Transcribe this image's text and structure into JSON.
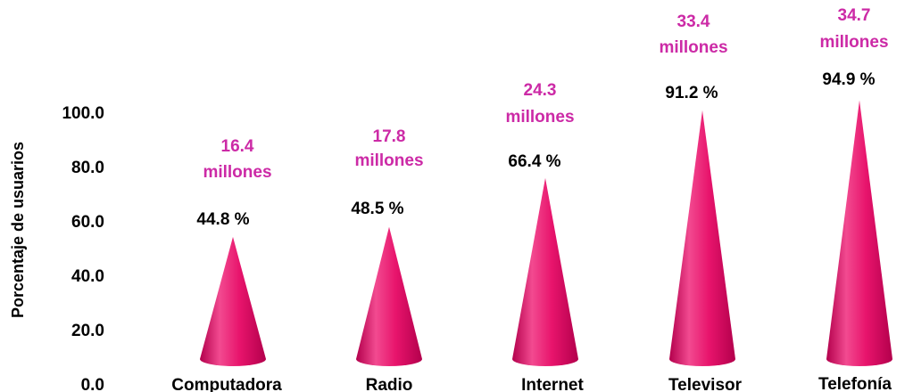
{
  "chart_data": {
    "type": "bar",
    "shape": "cone",
    "ylabel": "Porcentaje de usuarios",
    "ylim": [
      0,
      100
    ],
    "yticks": [
      "0.0",
      "20.0",
      "40.0",
      "60.0",
      "80.0",
      "100.0"
    ],
    "categories": [
      "Computadora",
      "Radio",
      "Internet",
      "Televisor",
      "Telefonía"
    ],
    "series": [
      {
        "values": [
          44.8,
          48.5,
          66.4,
          91.2,
          94.9
        ]
      }
    ],
    "value_labels": [
      "44.8 %",
      "48.5 %",
      "66.4 %",
      "91.2 %",
      "94.9 %"
    ],
    "user_labels": [
      {
        "line1": "16.4",
        "line2": "millones"
      },
      {
        "line1": "17.8",
        "line2": "millones"
      },
      {
        "line1": "24.3",
        "line2": "millones"
      },
      {
        "line1": "33.4",
        "line2": "millones"
      },
      {
        "line1": "34.7",
        "line2": "millones"
      }
    ],
    "grid": false,
    "legend": "none",
    "colors": {
      "cone_light": "#f24a90",
      "cone_mid": "#e8146c",
      "cone_dark": "#b3004c",
      "user_label": "#cc2aa6",
      "text": "#000000"
    }
  }
}
